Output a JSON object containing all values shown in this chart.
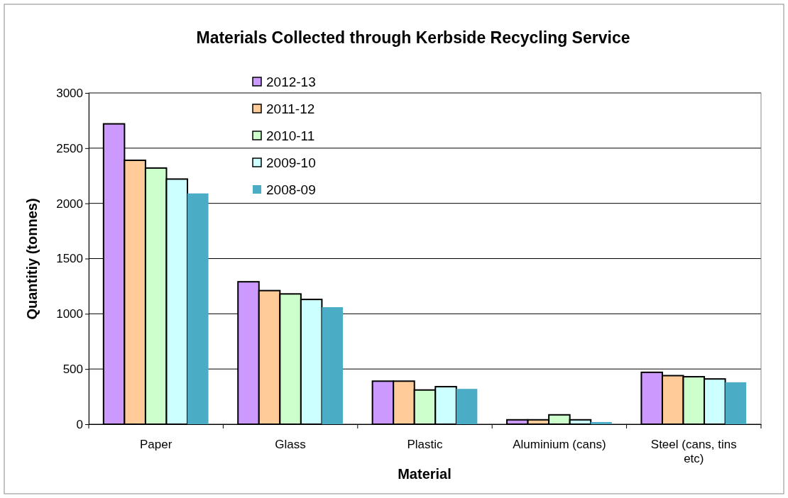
{
  "chart_data": {
    "type": "bar",
    "title": "Materials Collected through Kerbside Recycling Service",
    "xlabel": "Material",
    "ylabel": "Quantitiy (tonnes)",
    "categories": [
      "Paper",
      "Glass",
      "Plastic",
      "Aluminium (cans)",
      "Steel (cans, tins etc)"
    ],
    "series": [
      {
        "name": "2012-13",
        "color": "#cc99ff",
        "values": [
          2720,
          1290,
          390,
          40,
          470
        ]
      },
      {
        "name": "2011-12",
        "color": "#ffcc99",
        "values": [
          2390,
          1210,
          390,
          40,
          440
        ]
      },
      {
        "name": "2010-11",
        "color": "#ccffcc",
        "values": [
          2320,
          1180,
          310,
          85,
          430
        ]
      },
      {
        "name": "2009-10",
        "color": "#ccffff",
        "values": [
          2220,
          1130,
          340,
          40,
          410
        ]
      },
      {
        "name": "2008-09",
        "color": "#4bacc6",
        "values": [
          2090,
          1060,
          320,
          20,
          380
        ]
      }
    ],
    "ylim": [
      0,
      3000
    ],
    "yticks": [
      0,
      500,
      1000,
      1500,
      2000,
      2500,
      3000
    ],
    "grid": "y",
    "legend": "top"
  }
}
